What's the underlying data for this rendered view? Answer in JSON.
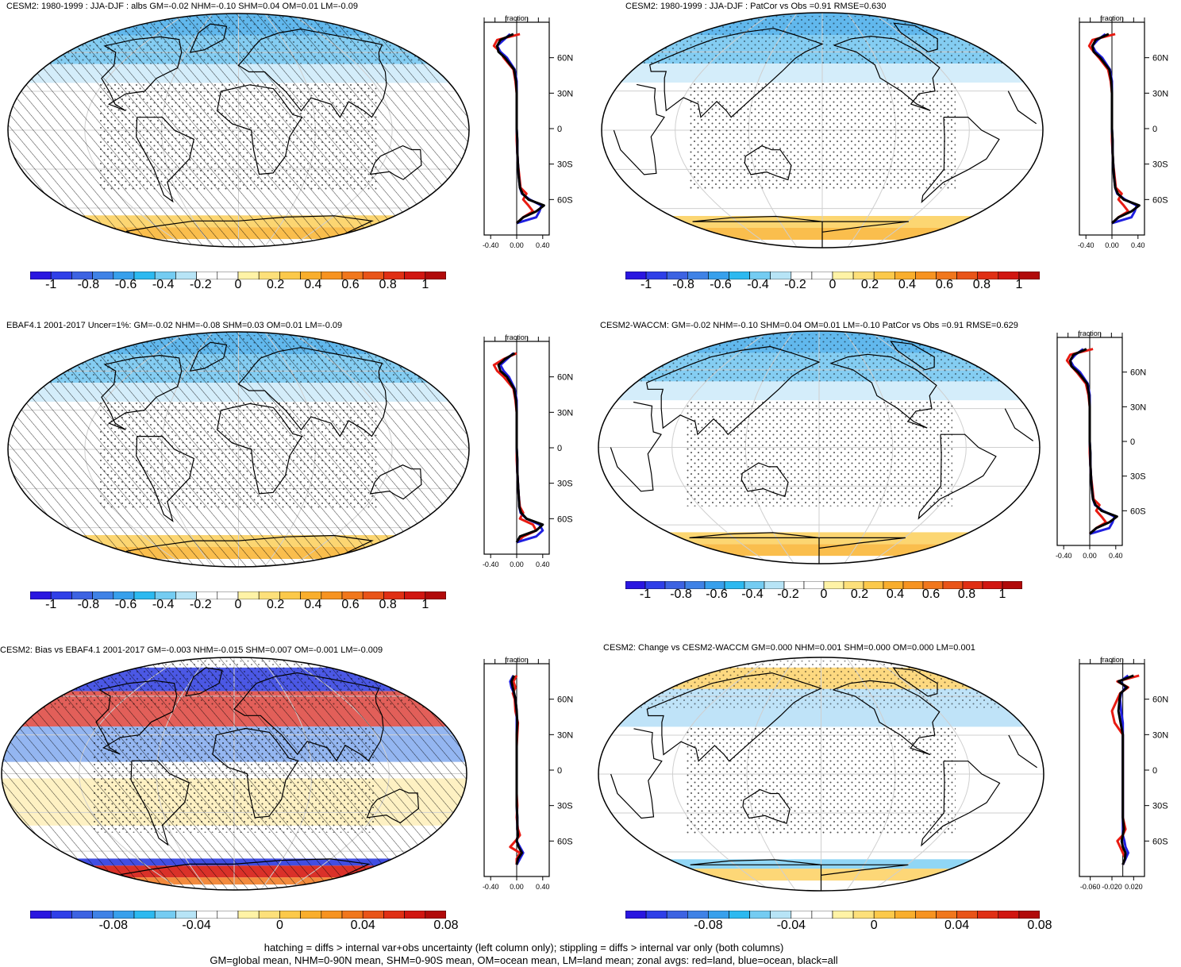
{
  "panels": [
    {
      "title": "CESM2: 1980-1999 : JJA-DJF : albs GM=-0.02 NHM=-0.10 SHM=0.04 OM=0.01 LM=-0.09",
      "hatching": true,
      "stipple": true,
      "pattern": "nh_neg",
      "zonal": {
        "xlabel": "fraction",
        "xticks": [
          "-0.40",
          "0.00",
          "0.40"
        ],
        "xlim": [
          -0.5,
          0.5
        ],
        "yticks": [
          "60N",
          "30N",
          "0",
          "30S",
          "60S"
        ],
        "ylim": [
          -90,
          90
        ]
      },
      "colorbar_labels": [
        "-1",
        "-0.8",
        "-0.6",
        "-0.4",
        "-0.2",
        "0",
        "0.2",
        "0.4",
        "0.6",
        "0.8",
        "1"
      ]
    },
    {
      "title": "CESM2: 1980-1999 : JJA-DJF : PatCor vs Obs =0.91 RMSE=0.630",
      "hatching": false,
      "stipple": true,
      "pattern": "nh_neg",
      "zonal": {
        "xlabel": "fraction",
        "xticks": [
          "-0.40",
          "0.00",
          "0.40"
        ],
        "xlim": [
          -0.5,
          0.5
        ],
        "yticks": [
          "60N",
          "30N",
          "0",
          "30S",
          "60S"
        ],
        "ylim": [
          -90,
          90
        ]
      },
      "colorbar_labels": [
        "-1",
        "-0.8",
        "-0.6",
        "-0.4",
        "-0.2",
        "0",
        "0.2",
        "0.4",
        "0.6",
        "0.8",
        "1"
      ]
    },
    {
      "title": "EBAF4.1 2001-2017 Uncer=1%: GM=-0.02 NHM=-0.08 SHM=0.03 OM=0.01 LM=-0.09",
      "hatching": true,
      "stipple": true,
      "pattern": "nh_neg",
      "zonal": {
        "xlabel": "fraction",
        "xticks": [
          "-0.40",
          "0.00",
          "0.40"
        ],
        "xlim": [
          -0.5,
          0.5
        ],
        "yticks": [
          "60N",
          "30N",
          "0",
          "30S",
          "60S"
        ],
        "ylim": [
          -90,
          90
        ]
      },
      "colorbar_labels": [
        "-1",
        "-0.8",
        "-0.6",
        "-0.4",
        "-0.2",
        "0",
        "0.2",
        "0.4",
        "0.6",
        "0.8",
        "1"
      ]
    },
    {
      "title": "CESM2-WACCM: GM=-0.02 NHM=-0.10 SHM=0.04 OM=0.01 LM=-0.10 PatCor vs Obs =0.91 RMSE=0.629",
      "hatching": false,
      "stipple": true,
      "pattern": "nh_neg",
      "zonal": {
        "xlabel": "fraction",
        "xticks": [
          "-0.40",
          "0.00",
          "0.40"
        ],
        "xlim": [
          -0.5,
          0.5
        ],
        "yticks": [
          "60N",
          "30N",
          "0",
          "30S",
          "60S"
        ],
        "ylim": [
          -90,
          90
        ]
      },
      "colorbar_labels": [
        "-1",
        "-0.8",
        "-0.6",
        "-0.4",
        "-0.2",
        "0",
        "0.2",
        "0.4",
        "0.6",
        "0.8",
        "1"
      ]
    },
    {
      "title": "CESM2: Bias vs EBAF4.1 2001-2017 GM=-0.003 NHM=-0.015 SHM=0.007 OM=-0.001 LM=-0.009",
      "hatching": true,
      "stipple": true,
      "pattern": "bias",
      "zonal": {
        "xlabel": "fraction",
        "xticks": [
          "-0.40",
          "0.00",
          "0.40"
        ],
        "xlim": [
          -0.5,
          0.5
        ],
        "yticks": [
          "60N",
          "30N",
          "0",
          "30S",
          "60S"
        ],
        "ylim": [
          -90,
          90
        ]
      },
      "colorbar_labels": [
        "-0.08",
        "-0.04",
        "0",
        "0.04",
        "0.08"
      ]
    },
    {
      "title": "CESM2: Change vs CESM2-WACCM GM=0.000 NHM=0.001 SHM=0.000 OM=0.000 LM=0.001",
      "hatching": false,
      "stipple": true,
      "pattern": "change",
      "zonal": {
        "xlabel": "fraction",
        "xticks": [
          "-0.060",
          "-0.020",
          "0.020"
        ],
        "xlim": [
          -0.08,
          0.04
        ],
        "yticks": [
          "60N",
          "30N",
          "0",
          "30S",
          "60S"
        ],
        "ylim": [
          -90,
          90
        ]
      },
      "colorbar_labels": [
        "-0.08",
        "-0.04",
        "0",
        "0.04",
        "0.08"
      ]
    }
  ],
  "colorbar_colors": [
    "#2a16e0",
    "#2f3fe8",
    "#3d63e2",
    "#3f82e6",
    "#37a0ec",
    "#2cb9f0",
    "#74ccf2",
    "#b7e4f6",
    "#ffffff",
    "#ffffff",
    "#fff3a6",
    "#fde07a",
    "#fcc94a",
    "#f9ae2c",
    "#f79320",
    "#f1771c",
    "#e95418",
    "#e02f14",
    "#d11611",
    "#b10a0a"
  ],
  "chart_data": [
    {
      "type": "line",
      "title": "CESM2: 1980-1999 : JJA-DJF : albs GM=-0.02 NHM=-0.10 SHM=0.04 OM=0.01 LM=-0.09",
      "xlabel": "fraction",
      "y": [
        80,
        75,
        70,
        65,
        60,
        50,
        40,
        30,
        20,
        10,
        0,
        -10,
        -20,
        -30,
        -40,
        -50,
        -55,
        -60,
        -65,
        -70,
        -75,
        -80
      ],
      "series": [
        {
          "color": "red",
          "values": [
            0.05,
            -0.3,
            -0.35,
            -0.25,
            -0.2,
            -0.05,
            -0.02,
            0.0,
            0.0,
            0.0,
            0.0,
            0.0,
            0.01,
            0.02,
            0.04,
            0.06,
            0.15,
            0.1,
            0.18,
            0.25,
            0.1,
            0.0
          ]
        },
        {
          "color": "blue",
          "values": [
            -0.1,
            -0.2,
            -0.3,
            -0.25,
            -0.15,
            -0.03,
            0.0,
            0.0,
            0.0,
            0.0,
            0.0,
            0.01,
            0.01,
            0.02,
            0.03,
            0.05,
            0.08,
            0.2,
            0.38,
            0.35,
            0.3,
            0.0
          ]
        },
        {
          "color": "black",
          "values": [
            -0.05,
            -0.25,
            -0.3,
            -0.28,
            -0.18,
            -0.04,
            -0.01,
            0.0,
            0.0,
            0.0,
            0.0,
            0.01,
            0.01,
            0.02,
            0.03,
            0.05,
            0.09,
            0.18,
            0.42,
            0.3,
            0.1,
            0.0
          ]
        }
      ]
    },
    {
      "type": "line",
      "title": "CESM2: 1980-1999 : JJA-DJF : PatCor vs Obs =0.91 RMSE=0.630",
      "xlabel": "fraction",
      "y": [
        80,
        75,
        70,
        65,
        60,
        50,
        40,
        30,
        20,
        10,
        0,
        -10,
        -20,
        -30,
        -40,
        -50,
        -55,
        -60,
        -65,
        -70,
        -75,
        -80
      ],
      "series": [
        {
          "color": "red",
          "values": [
            0.05,
            -0.3,
            -0.35,
            -0.28,
            -0.2,
            -0.06,
            -0.02,
            0.0,
            0.0,
            0.0,
            0.0,
            0.0,
            0.01,
            0.02,
            0.04,
            0.06,
            0.15,
            0.1,
            0.18,
            0.25,
            0.1,
            0.0
          ]
        },
        {
          "color": "blue",
          "values": [
            -0.1,
            -0.22,
            -0.3,
            -0.25,
            -0.15,
            -0.03,
            0.0,
            0.0,
            0.0,
            0.0,
            0.0,
            0.01,
            0.01,
            0.02,
            0.03,
            0.05,
            0.08,
            0.2,
            0.38,
            0.35,
            0.3,
            0.0
          ]
        },
        {
          "color": "black",
          "values": [
            -0.05,
            -0.25,
            -0.3,
            -0.28,
            -0.18,
            -0.04,
            -0.01,
            0.0,
            0.0,
            0.0,
            0.0,
            0.01,
            0.01,
            0.02,
            0.03,
            0.05,
            0.09,
            0.18,
            0.42,
            0.3,
            0.1,
            0.0
          ]
        }
      ]
    },
    {
      "type": "line",
      "title": "EBAF4.1 2001-2017 Uncer=1%: GM=-0.02 NHM=-0.08 SHM=0.03 OM=0.01 LM=-0.09",
      "xlabel": "fraction",
      "y": [
        80,
        75,
        70,
        65,
        60,
        50,
        40,
        30,
        20,
        10,
        0,
        -10,
        -20,
        -30,
        -40,
        -50,
        -55,
        -60,
        -65,
        -70,
        -75,
        -80
      ],
      "series": [
        {
          "color": "red",
          "values": [
            0.0,
            -0.2,
            -0.35,
            -0.3,
            -0.2,
            -0.05,
            -0.02,
            0.0,
            0.0,
            0.0,
            0.0,
            0.0,
            0.01,
            0.02,
            0.03,
            0.05,
            0.1,
            0.05,
            0.25,
            0.3,
            0.1,
            0.0
          ]
        },
        {
          "color": "blue",
          "values": [
            -0.05,
            -0.15,
            -0.25,
            -0.2,
            -0.12,
            -0.03,
            0.0,
            0.0,
            0.0,
            0.0,
            0.0,
            0.01,
            0.01,
            0.02,
            0.03,
            0.04,
            0.06,
            0.15,
            0.35,
            0.4,
            0.3,
            0.0
          ]
        },
        {
          "color": "black",
          "values": [
            -0.03,
            -0.18,
            -0.28,
            -0.25,
            -0.15,
            -0.04,
            -0.01,
            0.0,
            0.0,
            0.0,
            0.0,
            0.01,
            0.01,
            0.02,
            0.03,
            0.04,
            0.07,
            0.15,
            0.4,
            0.3,
            0.05,
            0.0
          ]
        }
      ]
    },
    {
      "type": "line",
      "title": "CESM2-WACCM: GM=-0.02 NHM=-0.10 SHM=0.04 OM=0.01 LM=-0.10 PatCor vs Obs =0.91 RMSE=0.629",
      "xlabel": "fraction",
      "y": [
        80,
        75,
        70,
        65,
        60,
        50,
        40,
        30,
        20,
        10,
        0,
        -10,
        -20,
        -30,
        -40,
        -50,
        -55,
        -60,
        -65,
        -70,
        -75,
        -80
      ],
      "series": [
        {
          "color": "red",
          "values": [
            0.05,
            -0.3,
            -0.35,
            -0.28,
            -0.2,
            -0.06,
            -0.02,
            0.0,
            0.0,
            0.0,
            0.0,
            0.0,
            0.01,
            0.02,
            0.04,
            0.06,
            0.15,
            0.1,
            0.18,
            0.25,
            0.1,
            0.0
          ]
        },
        {
          "color": "blue",
          "values": [
            -0.1,
            -0.22,
            -0.3,
            -0.25,
            -0.15,
            -0.03,
            0.0,
            0.0,
            0.0,
            0.0,
            0.0,
            0.01,
            0.01,
            0.02,
            0.03,
            0.05,
            0.08,
            0.2,
            0.38,
            0.35,
            0.3,
            0.0
          ]
        },
        {
          "color": "black",
          "values": [
            -0.05,
            -0.25,
            -0.3,
            -0.28,
            -0.18,
            -0.04,
            -0.01,
            0.0,
            0.0,
            0.0,
            0.0,
            0.01,
            0.01,
            0.02,
            0.03,
            0.05,
            0.09,
            0.18,
            0.42,
            0.3,
            0.1,
            0.0
          ]
        }
      ]
    },
    {
      "type": "line",
      "title": "CESM2: Bias vs EBAF4.1 2001-2017 GM=-0.003 NHM=-0.015 SHM=0.007 OM=-0.001 LM=-0.009",
      "xlabel": "fraction",
      "y": [
        80,
        75,
        70,
        65,
        60,
        50,
        40,
        30,
        20,
        10,
        0,
        -10,
        -20,
        -30,
        -40,
        -50,
        -55,
        -60,
        -65,
        -70,
        -75,
        -80
      ],
      "series": [
        {
          "color": "red",
          "values": [
            0.0,
            -0.05,
            -0.02,
            -0.06,
            -0.03,
            -0.02,
            0.02,
            0.01,
            0.0,
            0.0,
            0.0,
            0.0,
            0.0,
            0.01,
            0.0,
            0.02,
            0.05,
            -0.02,
            -0.1,
            0.05,
            0.0,
            0.0
          ]
        },
        {
          "color": "blue",
          "values": [
            -0.05,
            -0.1,
            -0.08,
            -0.04,
            -0.02,
            0.0,
            0.0,
            0.0,
            0.0,
            0.0,
            0.0,
            0.0,
            0.0,
            0.0,
            0.01,
            0.01,
            0.02,
            0.0,
            0.05,
            0.1,
            0.05,
            0.0
          ]
        },
        {
          "color": "black",
          "values": [
            -0.04,
            -0.08,
            -0.06,
            -0.04,
            -0.02,
            0.0,
            0.01,
            0.0,
            0.0,
            0.0,
            0.0,
            0.0,
            0.0,
            0.0,
            0.01,
            0.01,
            0.02,
            0.0,
            0.03,
            0.08,
            0.02,
            0.0
          ]
        }
      ]
    },
    {
      "type": "line",
      "title": "CESM2: Change vs CESM2-WACCM GM=0.000 NHM=0.001 SHM=0.000 OM=0.000 LM=0.001",
      "xlabel": "fraction",
      "y": [
        80,
        75,
        70,
        65,
        60,
        50,
        40,
        30,
        20,
        10,
        0,
        -10,
        -20,
        -30,
        -40,
        -50,
        -55,
        -60,
        -65,
        -70,
        -75,
        -80
      ],
      "series": [
        {
          "color": "red",
          "values": [
            0.03,
            -0.01,
            0.01,
            -0.005,
            -0.01,
            -0.02,
            -0.015,
            0.0,
            0.0,
            0.0,
            0.0,
            0.0,
            0.0,
            0.0,
            0.0,
            0.005,
            0.0,
            -0.01,
            -0.005,
            0.0,
            0.005,
            0.0
          ]
        },
        {
          "color": "blue",
          "values": [
            0.01,
            -0.005,
            0.005,
            -0.003,
            -0.005,
            -0.003,
            0.0,
            0.0,
            0.0,
            0.0,
            0.0,
            0.0,
            0.0,
            0.0,
            0.0,
            0.0,
            0.0,
            0.003,
            0.005,
            0.01,
            0.005,
            0.0
          ]
        },
        {
          "color": "black",
          "values": [
            0.02,
            -0.008,
            0.008,
            -0.004,
            -0.006,
            -0.008,
            -0.004,
            0.0,
            0.0,
            0.0,
            0.0,
            0.0,
            0.0,
            0.0,
            0.0,
            0.002,
            0.0,
            -0.002,
            0.0,
            0.005,
            0.004,
            0.0
          ]
        }
      ]
    }
  ],
  "footer": {
    "line1": "hatching = diffs > internal var+obs uncertainty (left column only); stippling = diffs > internal var only (both columns)",
    "line2": "GM=global mean, NHM=0-90N mean, SHM=0-90S mean, OM=ocean mean, LM=land mean; zonal avgs: red=land, blue=ocean, black=all"
  }
}
